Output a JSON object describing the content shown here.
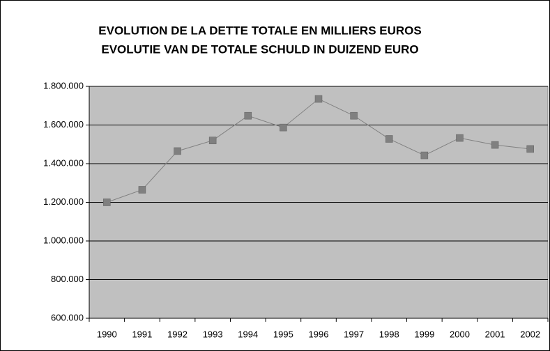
{
  "chart_data": {
    "type": "line",
    "title": [
      "EVOLUTION DE LA DETTE TOTALE EN MILLIERS EUROS",
      "EVOLUTIE VAN DE TOTALE SCHULD IN DUIZEND EURO"
    ],
    "categories": [
      "1990",
      "1991",
      "1992",
      "1993",
      "1994",
      "1995",
      "1996",
      "1997",
      "1998",
      "1999",
      "2000",
      "2001",
      "2002"
    ],
    "series": [
      {
        "color": "#808080",
        "values": [
          1200000,
          1265000,
          1465000,
          1520000,
          1648000,
          1587000,
          1735000,
          1648000,
          1528000,
          1443000,
          1533000,
          1497000,
          1476000
        ]
      }
    ],
    "ylim": [
      600000,
      1800000
    ],
    "yticks": [
      {
        "value": 600000,
        "label": "600.000"
      },
      {
        "value": 800000,
        "label": "800.000"
      },
      {
        "value": 1000000,
        "label": "1.000.000"
      },
      {
        "value": 1200000,
        "label": "1.200.000"
      },
      {
        "value": 1400000,
        "label": "1.400.000"
      },
      {
        "value": 1600000,
        "label": "1.600.000"
      },
      {
        "value": 1800000,
        "label": "1.800.000"
      }
    ],
    "grid": true,
    "plot_background": "#c0c0c0"
  }
}
